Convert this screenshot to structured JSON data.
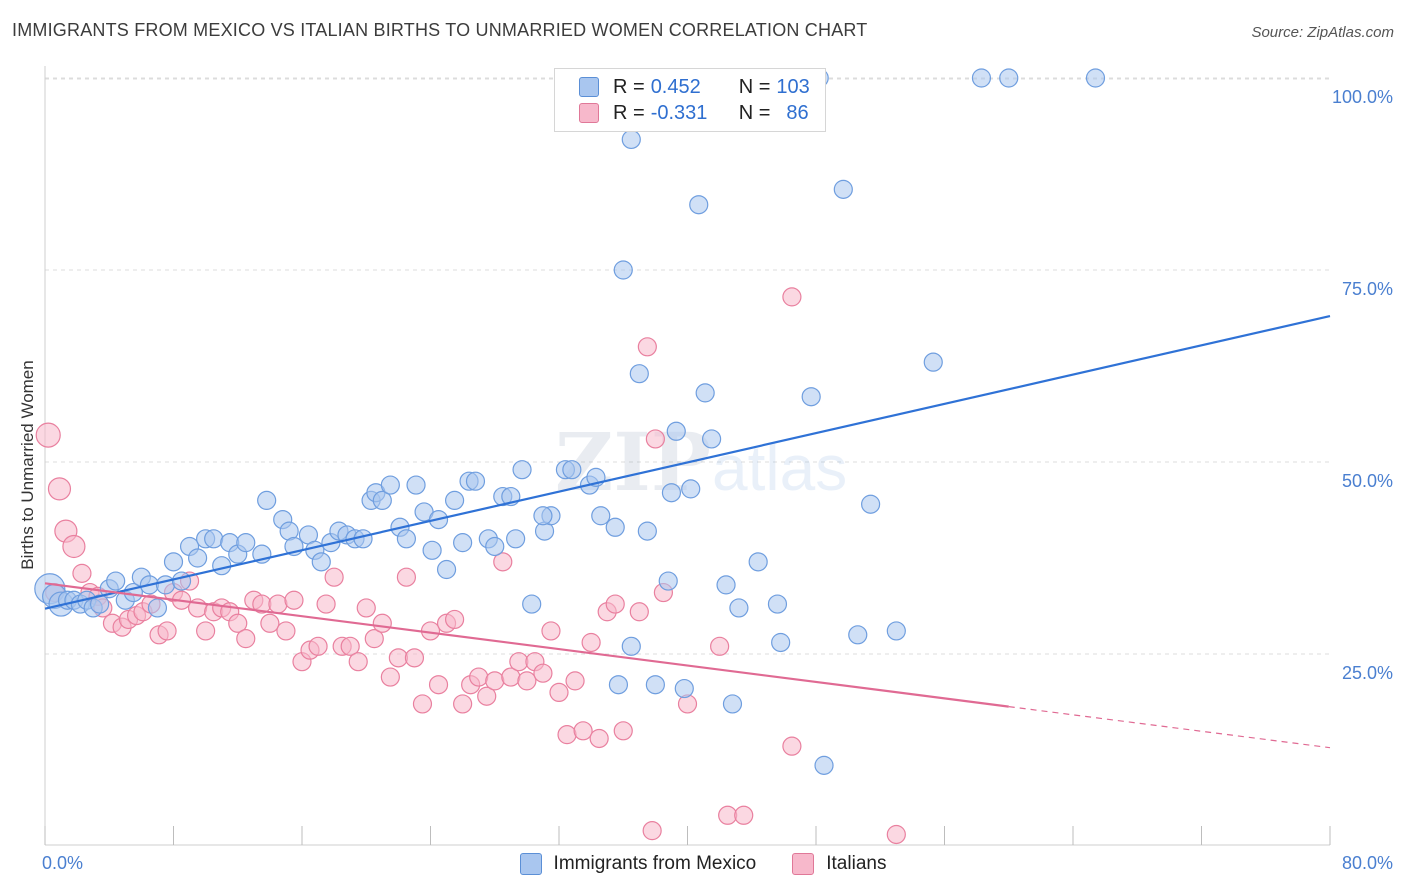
{
  "header": {
    "title": "IMMIGRANTS FROM MEXICO VS ITALIAN BIRTHS TO UNMARRIED WOMEN CORRELATION CHART",
    "source": "Source: ZipAtlas.com"
  },
  "watermark": {
    "zip": "ZIP",
    "atlas": "atlas"
  },
  "legend": {
    "rows": [
      {
        "r_label": "R =",
        "r_value": "0.452",
        "n_label": "N =",
        "n_value": "103",
        "color": "#a9c6ef",
        "border": "#5b8fd6"
      },
      {
        "r_label": "R =",
        "r_value": "-0.331",
        "n_label": "N =",
        "n_value": "86",
        "color": "#f7b8cb",
        "border": "#e07898"
      }
    ]
  },
  "bottom_legend": {
    "items": [
      {
        "label": "Immigrants from Mexico",
        "color": "#a9c6ef",
        "border": "#5b8fd6"
      },
      {
        "label": "Italians",
        "color": "#f7b8cb",
        "border": "#e07898"
      }
    ]
  },
  "chart_data": {
    "type": "scatter",
    "title": "IMMIGRANTS FROM MEXICO VS ITALIAN BIRTHS TO UNMARRIED WOMEN CORRELATION CHART",
    "xlabel": "",
    "ylabel": "Births to Unmarried Women",
    "xlim": [
      0,
      80
    ],
    "ylim": [
      0,
      105
    ],
    "x_tick_labels": [
      "0.0%",
      "80.0%"
    ],
    "y_ticks": [
      25,
      50,
      75,
      100
    ],
    "y_tick_labels": [
      "25.0%",
      "50.0%",
      "75.0%",
      "100.0%"
    ],
    "grid": true,
    "legend_position": "top-center",
    "series": [
      {
        "name": "Immigrants from Mexico",
        "color": "#6f9edf",
        "fill": "#a9c6ef",
        "trend": {
          "x": [
            0,
            80
          ],
          "y": [
            30.9,
            69
          ],
          "dashed_from": null
        },
        "points": [
          [
            0.3,
            33.5
          ],
          [
            0.6,
            32.5
          ],
          [
            1.0,
            31.5
          ],
          [
            1.4,
            32
          ],
          [
            1.8,
            32
          ],
          [
            2.2,
            31.5
          ],
          [
            2.6,
            32
          ],
          [
            3.0,
            31
          ],
          [
            3.4,
            31.5
          ],
          [
            4.0,
            33.5
          ],
          [
            4.4,
            34.5
          ],
          [
            5.0,
            32
          ],
          [
            5.5,
            33
          ],
          [
            6.0,
            35
          ],
          [
            6.5,
            34
          ],
          [
            7.0,
            31
          ],
          [
            7.5,
            34
          ],
          [
            8.0,
            37
          ],
          [
            8.5,
            34.5
          ],
          [
            9.0,
            39
          ],
          [
            9.5,
            37.5
          ],
          [
            10.0,
            40
          ],
          [
            10.5,
            40
          ],
          [
            11.0,
            36.5
          ],
          [
            11.5,
            39.5
          ],
          [
            12.0,
            38
          ],
          [
            12.5,
            39.5
          ],
          [
            13.5,
            38
          ],
          [
            13.8,
            45
          ],
          [
            14.8,
            42.5
          ],
          [
            15.2,
            41
          ],
          [
            15.5,
            39
          ],
          [
            16.4,
            40.5
          ],
          [
            16.8,
            38.5
          ],
          [
            17.2,
            37
          ],
          [
            17.8,
            39.5
          ],
          [
            18.3,
            41
          ],
          [
            18.8,
            40.5
          ],
          [
            19.3,
            40
          ],
          [
            19.8,
            40
          ],
          [
            20.3,
            45
          ],
          [
            20.6,
            46
          ],
          [
            21.0,
            45
          ],
          [
            21.5,
            47
          ],
          [
            22.1,
            41.5
          ],
          [
            22.5,
            40
          ],
          [
            23.1,
            47
          ],
          [
            23.6,
            43.5
          ],
          [
            24.1,
            38.5
          ],
          [
            24.5,
            42.5
          ],
          [
            25.0,
            36
          ],
          [
            25.5,
            45
          ],
          [
            26.0,
            39.5
          ],
          [
            26.4,
            47.5
          ],
          [
            26.8,
            47.5
          ],
          [
            27.6,
            40
          ],
          [
            28.0,
            39
          ],
          [
            28.5,
            45.5
          ],
          [
            29.0,
            45.5
          ],
          [
            29.3,
            40
          ],
          [
            29.7,
            49
          ],
          [
            30.3,
            31.5
          ],
          [
            31.1,
            41
          ],
          [
            31.5,
            43
          ],
          [
            32.4,
            49
          ],
          [
            32.8,
            49
          ],
          [
            33.9,
            47
          ],
          [
            34.3,
            48
          ],
          [
            34.6,
            43
          ],
          [
            35.5,
            41.5
          ],
          [
            36.5,
            92
          ],
          [
            36.5,
            26
          ],
          [
            37.0,
            61.5
          ],
          [
            37.5,
            41
          ],
          [
            38.0,
            21
          ],
          [
            38.8,
            34.5
          ],
          [
            39.0,
            46
          ],
          [
            39.3,
            54
          ],
          [
            40.2,
            46.5
          ],
          [
            40.7,
            83.5
          ],
          [
            41.1,
            59
          ],
          [
            41.5,
            53
          ],
          [
            42.4,
            34
          ],
          [
            42.8,
            18.5
          ],
          [
            43.2,
            31
          ],
          [
            44.4,
            37
          ],
          [
            45.6,
            31.5
          ],
          [
            45.8,
            26.5
          ],
          [
            47.7,
            58.5
          ],
          [
            48.2,
            100
          ],
          [
            48.5,
            10.5
          ],
          [
            49.7,
            85.5
          ],
          [
            50.6,
            27.5
          ],
          [
            51.4,
            44.5
          ],
          [
            53.0,
            28
          ],
          [
            55.3,
            63
          ],
          [
            58.3,
            100
          ],
          [
            60.0,
            100
          ],
          [
            65.4,
            100
          ],
          [
            36.0,
            75
          ],
          [
            39.8,
            20.5
          ],
          [
            35.7,
            21
          ],
          [
            31.0,
            43
          ]
        ]
      },
      {
        "name": "Italians",
        "color": "#e9809f",
        "fill": "#f7b8cb",
        "trend": {
          "x": [
            0,
            80
          ],
          "y": [
            34.2,
            12.8
          ],
          "dashed_from": 60
        },
        "points": [
          [
            0.2,
            53.5
          ],
          [
            0.9,
            46.5
          ],
          [
            1.3,
            41
          ],
          [
            1.8,
            39
          ],
          [
            2.3,
            35.5
          ],
          [
            2.8,
            33
          ],
          [
            3.3,
            32.5
          ],
          [
            3.6,
            31
          ],
          [
            4.2,
            29
          ],
          [
            4.8,
            28.5
          ],
          [
            5.2,
            29.5
          ],
          [
            5.7,
            30
          ],
          [
            6.1,
            30.5
          ],
          [
            6.6,
            31.5
          ],
          [
            7.1,
            27.5
          ],
          [
            7.6,
            28
          ],
          [
            8.0,
            33
          ],
          [
            8.5,
            32
          ],
          [
            9.0,
            34.5
          ],
          [
            9.5,
            31
          ],
          [
            10.0,
            28
          ],
          [
            10.5,
            30.5
          ],
          [
            11.0,
            31
          ],
          [
            11.5,
            30.5
          ],
          [
            12.0,
            29
          ],
          [
            12.5,
            27
          ],
          [
            13.0,
            32
          ],
          [
            13.5,
            31.5
          ],
          [
            14.0,
            29
          ],
          [
            14.5,
            31.5
          ],
          [
            15.0,
            28
          ],
          [
            15.5,
            32
          ],
          [
            16.0,
            24
          ],
          [
            16.5,
            25.5
          ],
          [
            17.0,
            26
          ],
          [
            17.5,
            31.5
          ],
          [
            18.0,
            35
          ],
          [
            18.5,
            26
          ],
          [
            19.0,
            26
          ],
          [
            19.5,
            24
          ],
          [
            20.0,
            31
          ],
          [
            20.5,
            27
          ],
          [
            21.0,
            29
          ],
          [
            21.5,
            22
          ],
          [
            22.0,
            24.5
          ],
          [
            22.5,
            35
          ],
          [
            23.0,
            24.5
          ],
          [
            23.5,
            18.5
          ],
          [
            24.0,
            28
          ],
          [
            24.5,
            21
          ],
          [
            25.0,
            29
          ],
          [
            25.5,
            29.5
          ],
          [
            26.0,
            18.5
          ],
          [
            26.5,
            21
          ],
          [
            27.0,
            22
          ],
          [
            27.5,
            19.5
          ],
          [
            28.0,
            21.5
          ],
          [
            28.5,
            37
          ],
          [
            29.0,
            22
          ],
          [
            29.5,
            24
          ],
          [
            30.0,
            21.5
          ],
          [
            30.5,
            24
          ],
          [
            31.0,
            22.5
          ],
          [
            31.5,
            28
          ],
          [
            32.0,
            20
          ],
          [
            32.5,
            14.5
          ],
          [
            33.0,
            21.5
          ],
          [
            33.5,
            15
          ],
          [
            34.0,
            26.5
          ],
          [
            34.5,
            14
          ],
          [
            35.0,
            30.5
          ],
          [
            35.5,
            31.5
          ],
          [
            36.0,
            15
          ],
          [
            37.0,
            30.5
          ],
          [
            37.5,
            65
          ],
          [
            38.0,
            53
          ],
          [
            38.5,
            33
          ],
          [
            40.0,
            18.5
          ],
          [
            42.0,
            26
          ],
          [
            46.5,
            71.5
          ],
          [
            46.5,
            13
          ],
          [
            42.5,
            4
          ],
          [
            43.5,
            4
          ],
          [
            37.8,
            2
          ],
          [
            53.0,
            1.5
          ],
          [
            0.6,
            33
          ]
        ]
      }
    ]
  }
}
